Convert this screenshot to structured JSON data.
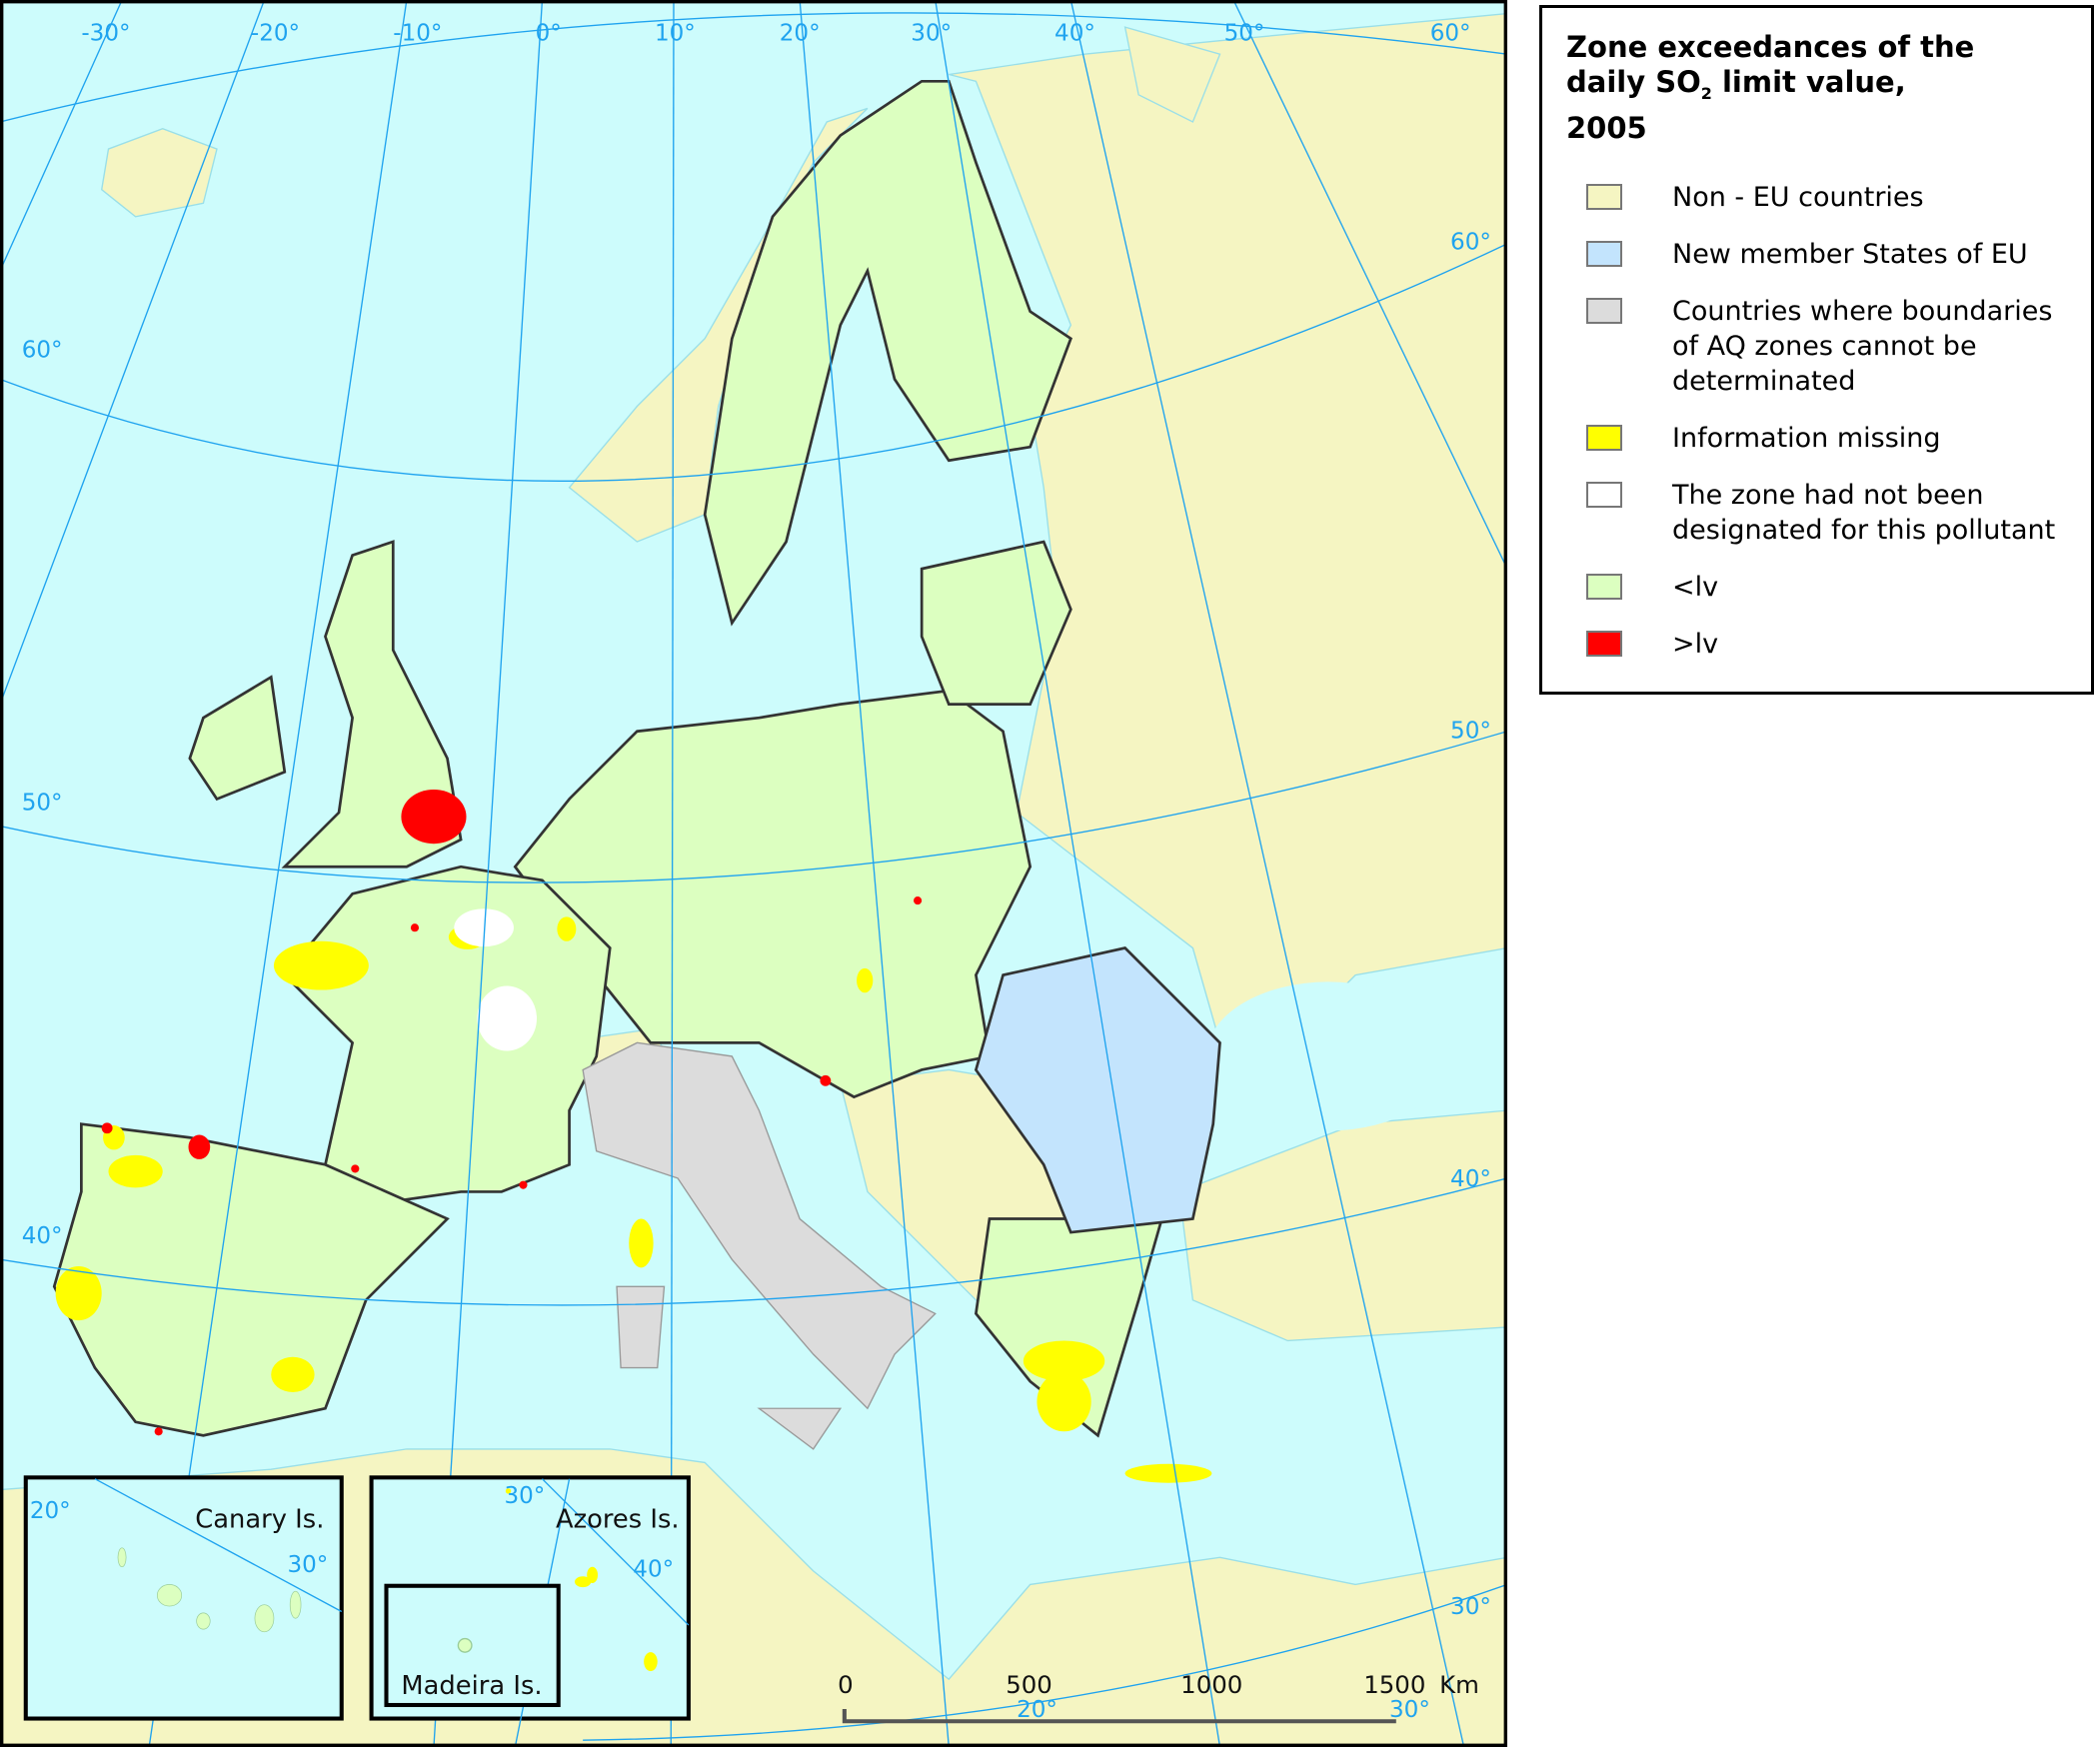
{
  "legend": {
    "title_line1": "Zone exceedances of the",
    "title_line2a": "daily SO",
    "title_sub": "2",
    "title_line2b": " limit value,",
    "title_line3": "2005",
    "items": [
      {
        "label": "Non - EU countries",
        "color": "#f5f5c2"
      },
      {
        "label": "New member States of EU",
        "color": "#c3e4fd"
      },
      {
        "label": "Countries where boundaries of AQ zones cannot be determinated",
        "color": "#dcdcdc"
      },
      {
        "label": "Information missing",
        "color": "#ffff00"
      },
      {
        "label": "The zone had not been designated for this pollutant",
        "color": "#ffffff"
      },
      {
        "label": "<lv",
        "color": "#dcffc0"
      },
      {
        "label": ">lv",
        "color": "#ff0000"
      }
    ]
  },
  "map": {
    "sea_color": "#cdfcfc",
    "graticule_color": "#1fa3ef",
    "longitude_labels": [
      "-30°",
      "-20°",
      "-10°",
      "0°",
      "10°",
      "20°",
      "30°",
      "40°",
      "50°",
      "60°"
    ],
    "latitude_labels": [
      "60°",
      "50°",
      "40°",
      "60°",
      "50°",
      "40°",
      "30°"
    ],
    "insets": {
      "canary": {
        "label": "Canary Is.",
        "grid_labels": [
          "20°",
          "30°"
        ]
      },
      "azores": {
        "label": "Azores Is.",
        "grid_labels": [
          "30°",
          "40°"
        ]
      },
      "madeira": {
        "label": "Madeira Is."
      }
    },
    "scale_bar": {
      "ticks": [
        "0",
        "500",
        "1000",
        "1500"
      ],
      "unit": "Km",
      "grid_labels": [
        "20°",
        "30°"
      ]
    }
  }
}
